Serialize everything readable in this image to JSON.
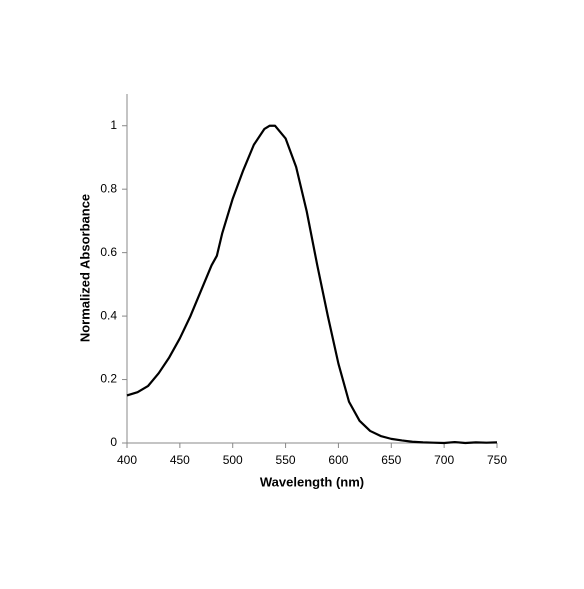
{
  "chart_data": {
    "type": "line",
    "xlabel": "Wavelength (nm)",
    "ylabel": "Normalized Absorbance",
    "x": [
      400,
      410,
      420,
      430,
      440,
      450,
      460,
      470,
      480,
      485,
      490,
      500,
      510,
      520,
      530,
      535,
      540,
      550,
      560,
      570,
      580,
      590,
      600,
      610,
      620,
      630,
      640,
      650,
      660,
      670,
      680,
      690,
      700,
      710,
      720,
      730,
      740,
      750
    ],
    "series": [
      {
        "name": "Absorbance",
        "color": "#000000",
        "values": [
          0.15,
          0.16,
          0.18,
          0.22,
          0.27,
          0.33,
          0.4,
          0.48,
          0.56,
          0.59,
          0.66,
          0.77,
          0.86,
          0.94,
          0.99,
          1.0,
          1.0,
          0.96,
          0.87,
          0.73,
          0.56,
          0.4,
          0.25,
          0.13,
          0.07,
          0.038,
          0.022,
          0.013,
          0.008,
          0.004,
          0.002,
          0.001,
          0.0,
          0.003,
          0.0,
          0.002,
          0.001,
          0.002
        ]
      }
    ],
    "xlim": [
      400,
      750
    ],
    "xticks": [
      400,
      450,
      500,
      550,
      600,
      650,
      700,
      750
    ],
    "ylim": [
      0,
      1.1
    ],
    "yticks": [
      0,
      0.2,
      0.4,
      0.6,
      0.8,
      1
    ],
    "grid": false
  }
}
